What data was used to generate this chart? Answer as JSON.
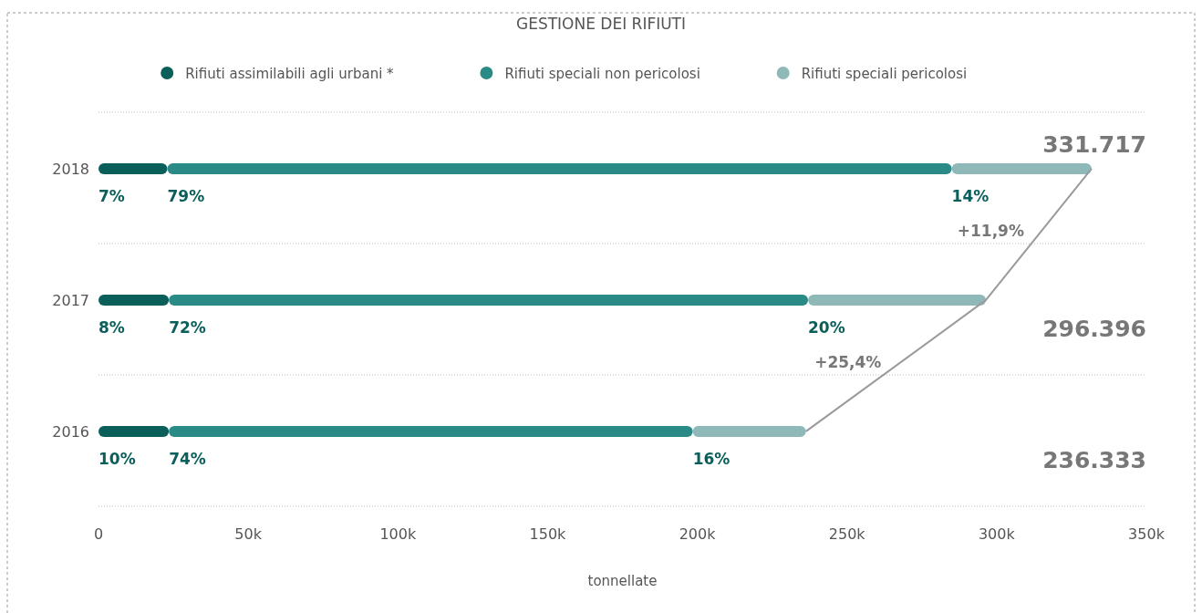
{
  "chart_data": {
    "type": "bar",
    "orientation": "horizontal",
    "stacked": true,
    "title": "GESTIONE DEI RIFIUTI",
    "xlabel": "tonnellate",
    "categories": [
      "2018",
      "2017",
      "2016"
    ],
    "series": [
      {
        "name": "Rifiuti assimilabili agli urbani *",
        "color": "#0b5f5b",
        "values": [
          23000,
          23500,
          23500
        ]
      },
      {
        "name": "Rifiuti speciali non pericolosi",
        "color": "#2a8a86",
        "values": [
          262000,
          213500,
          175000
        ]
      },
      {
        "name": "Rifiuti speciali pericolosi",
        "color": "#8fb9b8",
        "values": [
          46700,
          59400,
          37800
        ]
      },
      {
        "type": "line",
        "color": "#9a9a9a",
        "values": [
          331700,
          296400,
          236300
        ],
        "marker": "none"
      }
    ],
    "annotations": [
      {
        "text": "7%",
        "x": 0,
        "y": "2018"
      },
      {
        "text": "79%",
        "x": 23000,
        "y": "2018"
      },
      {
        "text": "14%",
        "x": 285000,
        "y": "2018"
      },
      {
        "text": "8%",
        "x": 0,
        "y": "2017"
      },
      {
        "text": "72%",
        "x": 23500,
        "y": "2017"
      },
      {
        "text": "20%",
        "x": 237000,
        "y": "2017"
      },
      {
        "text": "10%",
        "x": 0,
        "y": "2016"
      },
      {
        "text": "74%",
        "x": 23500,
        "y": "2016"
      },
      {
        "text": "16%",
        "x": 198500,
        "y": "2016"
      },
      "+11,9%",
      "+25,4%",
      "331.717",
      "296.396",
      "236.333"
    ],
    "xlim": [
      0,
      350000
    ],
    "xticks": [
      {
        "value": 0,
        "label": "0"
      },
      {
        "value": 50000,
        "label": "50k"
      },
      {
        "value": 100000,
        "label": "100k"
      },
      {
        "value": 150000,
        "label": "150k"
      },
      {
        "value": 200000,
        "label": "200k"
      },
      {
        "value": 250000,
        "label": "250k"
      },
      {
        "value": 300000,
        "label": "300k"
      },
      {
        "value": 350000,
        "label": "350k"
      }
    ],
    "grid": "y",
    "legend": "top"
  }
}
